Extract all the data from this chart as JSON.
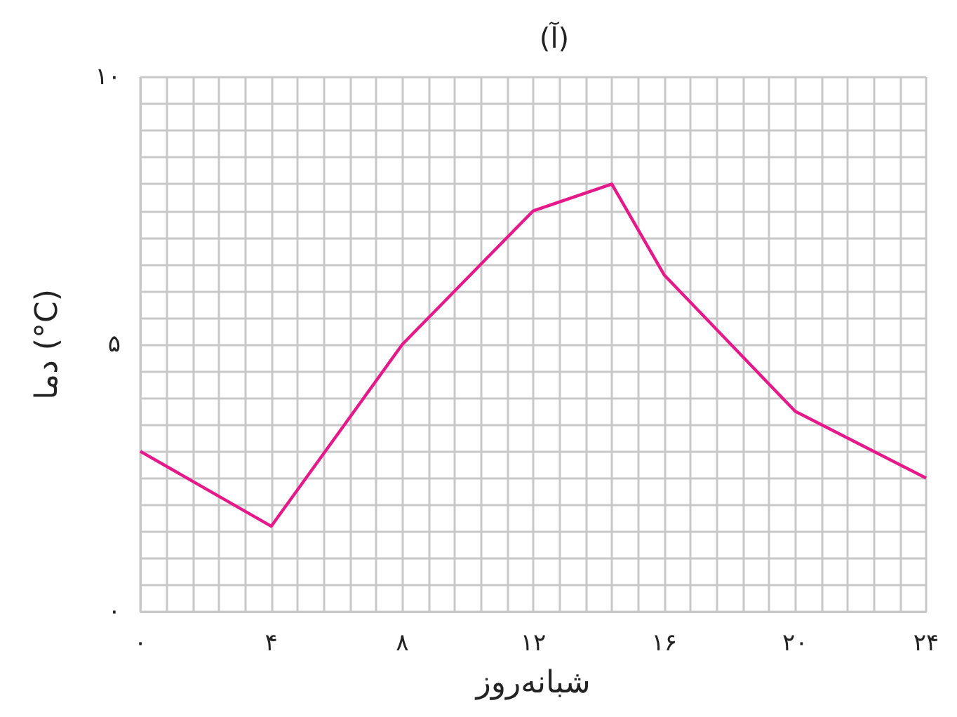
{
  "chart_data": {
    "type": "line",
    "title": "(آ)",
    "xlabel": "شبانه‌روز",
    "ylabel": "دما (°C)",
    "x": [
      0,
      4,
      8,
      12,
      14.4,
      16,
      20,
      24
    ],
    "series": [
      {
        "color": "#e6198a",
        "values": [
          3,
          1.6,
          5,
          7.5,
          8,
          6.3,
          3.75,
          2.5
        ]
      }
    ],
    "xlim": [
      0,
      24
    ],
    "xticks": [
      {
        "value": 0,
        "label": "۰"
      },
      {
        "value": 0.8,
        "label": null
      },
      {
        "value": 1.6,
        "label": null
      },
      {
        "value": 2.4,
        "label": null
      },
      {
        "value": 3.2,
        "label": null
      },
      {
        "value": 4,
        "label": "۴"
      },
      {
        "value": 4.8,
        "label": null
      },
      {
        "value": 5.6,
        "label": null
      },
      {
        "value": 6.4,
        "label": null
      },
      {
        "value": 7.2,
        "label": null
      },
      {
        "value": 8,
        "label": "۸"
      },
      {
        "value": 8.8,
        "label": null
      },
      {
        "value": 9.6,
        "label": null
      },
      {
        "value": 10.4,
        "label": null
      },
      {
        "value": 11.2,
        "label": null
      },
      {
        "value": 12,
        "label": "۱۲"
      },
      {
        "value": 12.8,
        "label": null
      },
      {
        "value": 13.6,
        "label": null
      },
      {
        "value": 14.4,
        "label": null
      },
      {
        "value": 15.2,
        "label": null
      },
      {
        "value": 16,
        "label": "۱۶"
      },
      {
        "value": 16.8,
        "label": null
      },
      {
        "value": 17.6,
        "label": null
      },
      {
        "value": 18.4,
        "label": null
      },
      {
        "value": 19.2,
        "label": null
      },
      {
        "value": 20,
        "label": "۲۰"
      },
      {
        "value": 20.8,
        "label": null
      },
      {
        "value": 21.6,
        "label": null
      },
      {
        "value": 22.4,
        "label": null
      },
      {
        "value": 23.2,
        "label": null
      },
      {
        "value": 24,
        "label": "۲۴"
      }
    ],
    "ylim": [
      0,
      10
    ],
    "yticks": [
      {
        "value": 0,
        "label": "۰"
      },
      {
        "value": 0.5,
        "label": null
      },
      {
        "value": 1,
        "label": null
      },
      {
        "value": 1.5,
        "label": null
      },
      {
        "value": 2,
        "label": null
      },
      {
        "value": 2.5,
        "label": null
      },
      {
        "value": 3,
        "label": null
      },
      {
        "value": 3.5,
        "label": null
      },
      {
        "value": 4,
        "label": null
      },
      {
        "value": 4.5,
        "label": null
      },
      {
        "value": 5,
        "label": "۵"
      },
      {
        "value": 5.5,
        "label": null
      },
      {
        "value": 6,
        "label": null
      },
      {
        "value": 6.5,
        "label": null
      },
      {
        "value": 7,
        "label": null
      },
      {
        "value": 7.5,
        "label": null
      },
      {
        "value": 8,
        "label": null
      },
      {
        "value": 8.5,
        "label": null
      },
      {
        "value": 9,
        "label": null
      },
      {
        "value": 9.5,
        "label": null
      },
      {
        "value": 10,
        "label": "۱۰"
      }
    ],
    "grid": true,
    "marker": "none",
    "line_style": "solid"
  }
}
